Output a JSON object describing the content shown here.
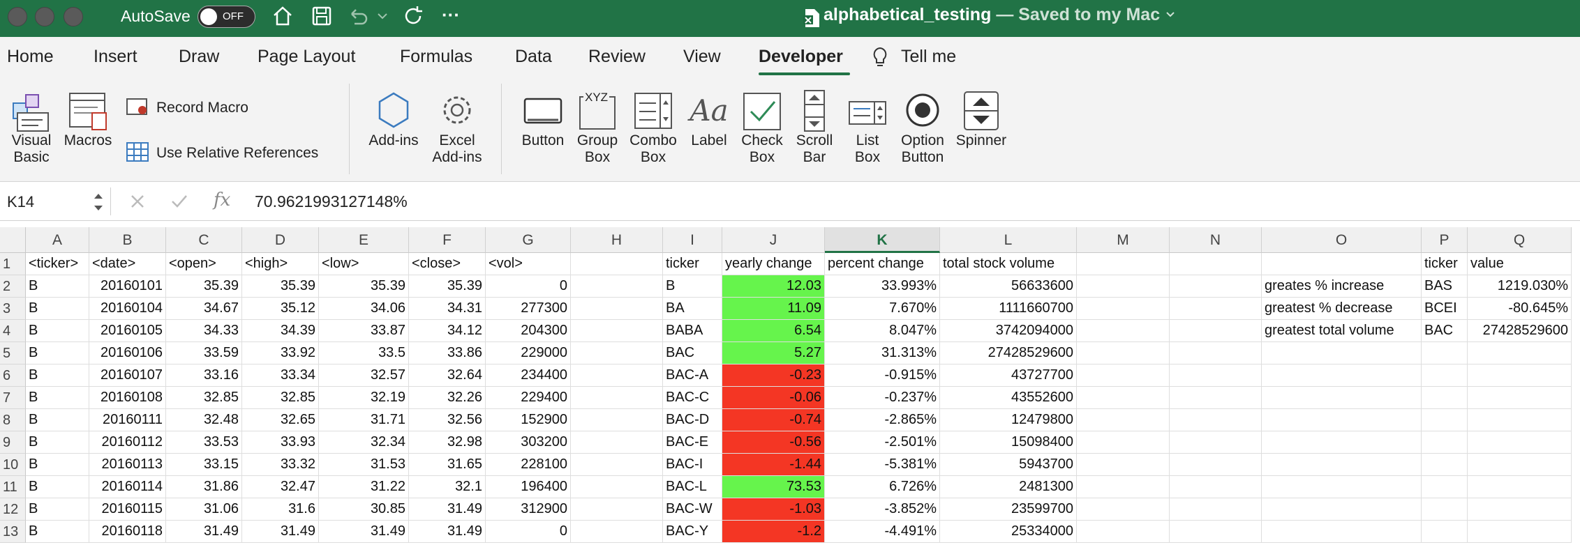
{
  "titlebar": {
    "autosave_label": "AutoSave",
    "autosave_state": "OFF",
    "doc_name": "alphabetical_testing",
    "save_status": "— Saved to my Mac",
    "more_label": "···",
    "accent": "#217346"
  },
  "tabs": [
    "Home",
    "Insert",
    "Draw",
    "Page Layout",
    "Formulas",
    "Data",
    "Review",
    "View",
    "Developer",
    "Tell me"
  ],
  "active_tab": "Developer",
  "ribbon": {
    "visual_basic": "Visual Basic",
    "macros": "Macros",
    "record_macro": "Record Macro",
    "use_relative": "Use Relative References",
    "add_ins": "Add-ins",
    "excel_add_ins": "Excel Add-ins",
    "button": "Button",
    "group_box": "Group Box",
    "group_box_icon_text": "XYZ",
    "combo_box": "Combo Box",
    "label": "Label",
    "label_icon_text": "Aa",
    "check_box": "Check Box",
    "scroll_bar": "Scroll Bar",
    "list_box": "List Box",
    "option_button": "Option Button",
    "spinner": "Spinner"
  },
  "formula_bar": {
    "name_box": "K14",
    "fx": "fx",
    "formula": "70.9621993127148%"
  },
  "columns": [
    "A",
    "B",
    "C",
    "D",
    "E",
    "F",
    "G",
    "H",
    "I",
    "J",
    "K",
    "L",
    "M",
    "N",
    "O",
    "P",
    "Q"
  ],
  "selected_column": "K",
  "rows": [
    "1",
    "2",
    "3",
    "4",
    "5",
    "6",
    "7",
    "8",
    "9",
    "10",
    "11",
    "12",
    "13"
  ],
  "sheet": {
    "header": [
      "<ticker>",
      "<date>",
      "<open>",
      "<high>",
      "<low>",
      "<close>",
      "<vol>"
    ],
    "data": [
      [
        "B",
        "20160101",
        "35.39",
        "35.39",
        "35.39",
        "35.39",
        "0"
      ],
      [
        "B",
        "20160104",
        "34.67",
        "35.12",
        "34.06",
        "34.31",
        "277300"
      ],
      [
        "B",
        "20160105",
        "34.33",
        "34.39",
        "33.87",
        "34.12",
        "204300"
      ],
      [
        "B",
        "20160106",
        "33.59",
        "33.92",
        "33.5",
        "33.86",
        "229000"
      ],
      [
        "B",
        "20160107",
        "33.16",
        "33.34",
        "32.57",
        "32.64",
        "234400"
      ],
      [
        "B",
        "20160108",
        "32.85",
        "32.85",
        "32.19",
        "32.26",
        "229400"
      ],
      [
        "B",
        "20160111",
        "32.48",
        "32.65",
        "31.71",
        "32.56",
        "152900"
      ],
      [
        "B",
        "20160112",
        "33.53",
        "33.93",
        "32.34",
        "32.98",
        "303200"
      ],
      [
        "B",
        "20160113",
        "33.15",
        "33.32",
        "31.53",
        "31.65",
        "228100"
      ],
      [
        "B",
        "20160114",
        "31.86",
        "32.47",
        "31.22",
        "32.1",
        "196400"
      ],
      [
        "B",
        "20160115",
        "31.06",
        "31.6",
        "30.85",
        "31.49",
        "312900"
      ],
      [
        "B",
        "20160118",
        "31.49",
        "31.49",
        "31.49",
        "31.49",
        "0"
      ]
    ],
    "summary_header": [
      "ticker",
      "yearly change",
      "percent change",
      "total stock volume"
    ],
    "summary": [
      [
        "B",
        "12.03",
        "33.993%",
        "56633600"
      ],
      [
        "BA",
        "11.09",
        "7.670%",
        "1111660700"
      ],
      [
        "BABA",
        "6.54",
        "8.047%",
        "3742094000"
      ],
      [
        "BAC",
        "5.27",
        "31.313%",
        "27428529600"
      ],
      [
        "BAC-A",
        "-0.23",
        "-0.915%",
        "43727700"
      ],
      [
        "BAC-C",
        "-0.06",
        "-0.237%",
        "43552600"
      ],
      [
        "BAC-D",
        "-0.74",
        "-2.865%",
        "12479800"
      ],
      [
        "BAC-E",
        "-0.56",
        "-2.501%",
        "15098400"
      ],
      [
        "BAC-I",
        "-1.44",
        "-5.381%",
        "5943700"
      ],
      [
        "BAC-L",
        "73.53",
        "6.726%",
        "2481300"
      ],
      [
        "BAC-W",
        "-1.03",
        "-3.852%",
        "23599700"
      ],
      [
        "BAC-Y",
        "-1.2",
        "-4.491%",
        "25334000"
      ]
    ],
    "stats_header": [
      "ticker",
      "value"
    ],
    "stats": [
      [
        "greates % increase",
        "BAS",
        "1219.030%"
      ],
      [
        "greatest % decrease",
        "BCEI",
        "-80.645%"
      ],
      [
        "greatest total volume",
        "BAC",
        "27428529600"
      ]
    ]
  },
  "colors": {
    "positive": "#66f44c",
    "negative": "#f43624"
  }
}
